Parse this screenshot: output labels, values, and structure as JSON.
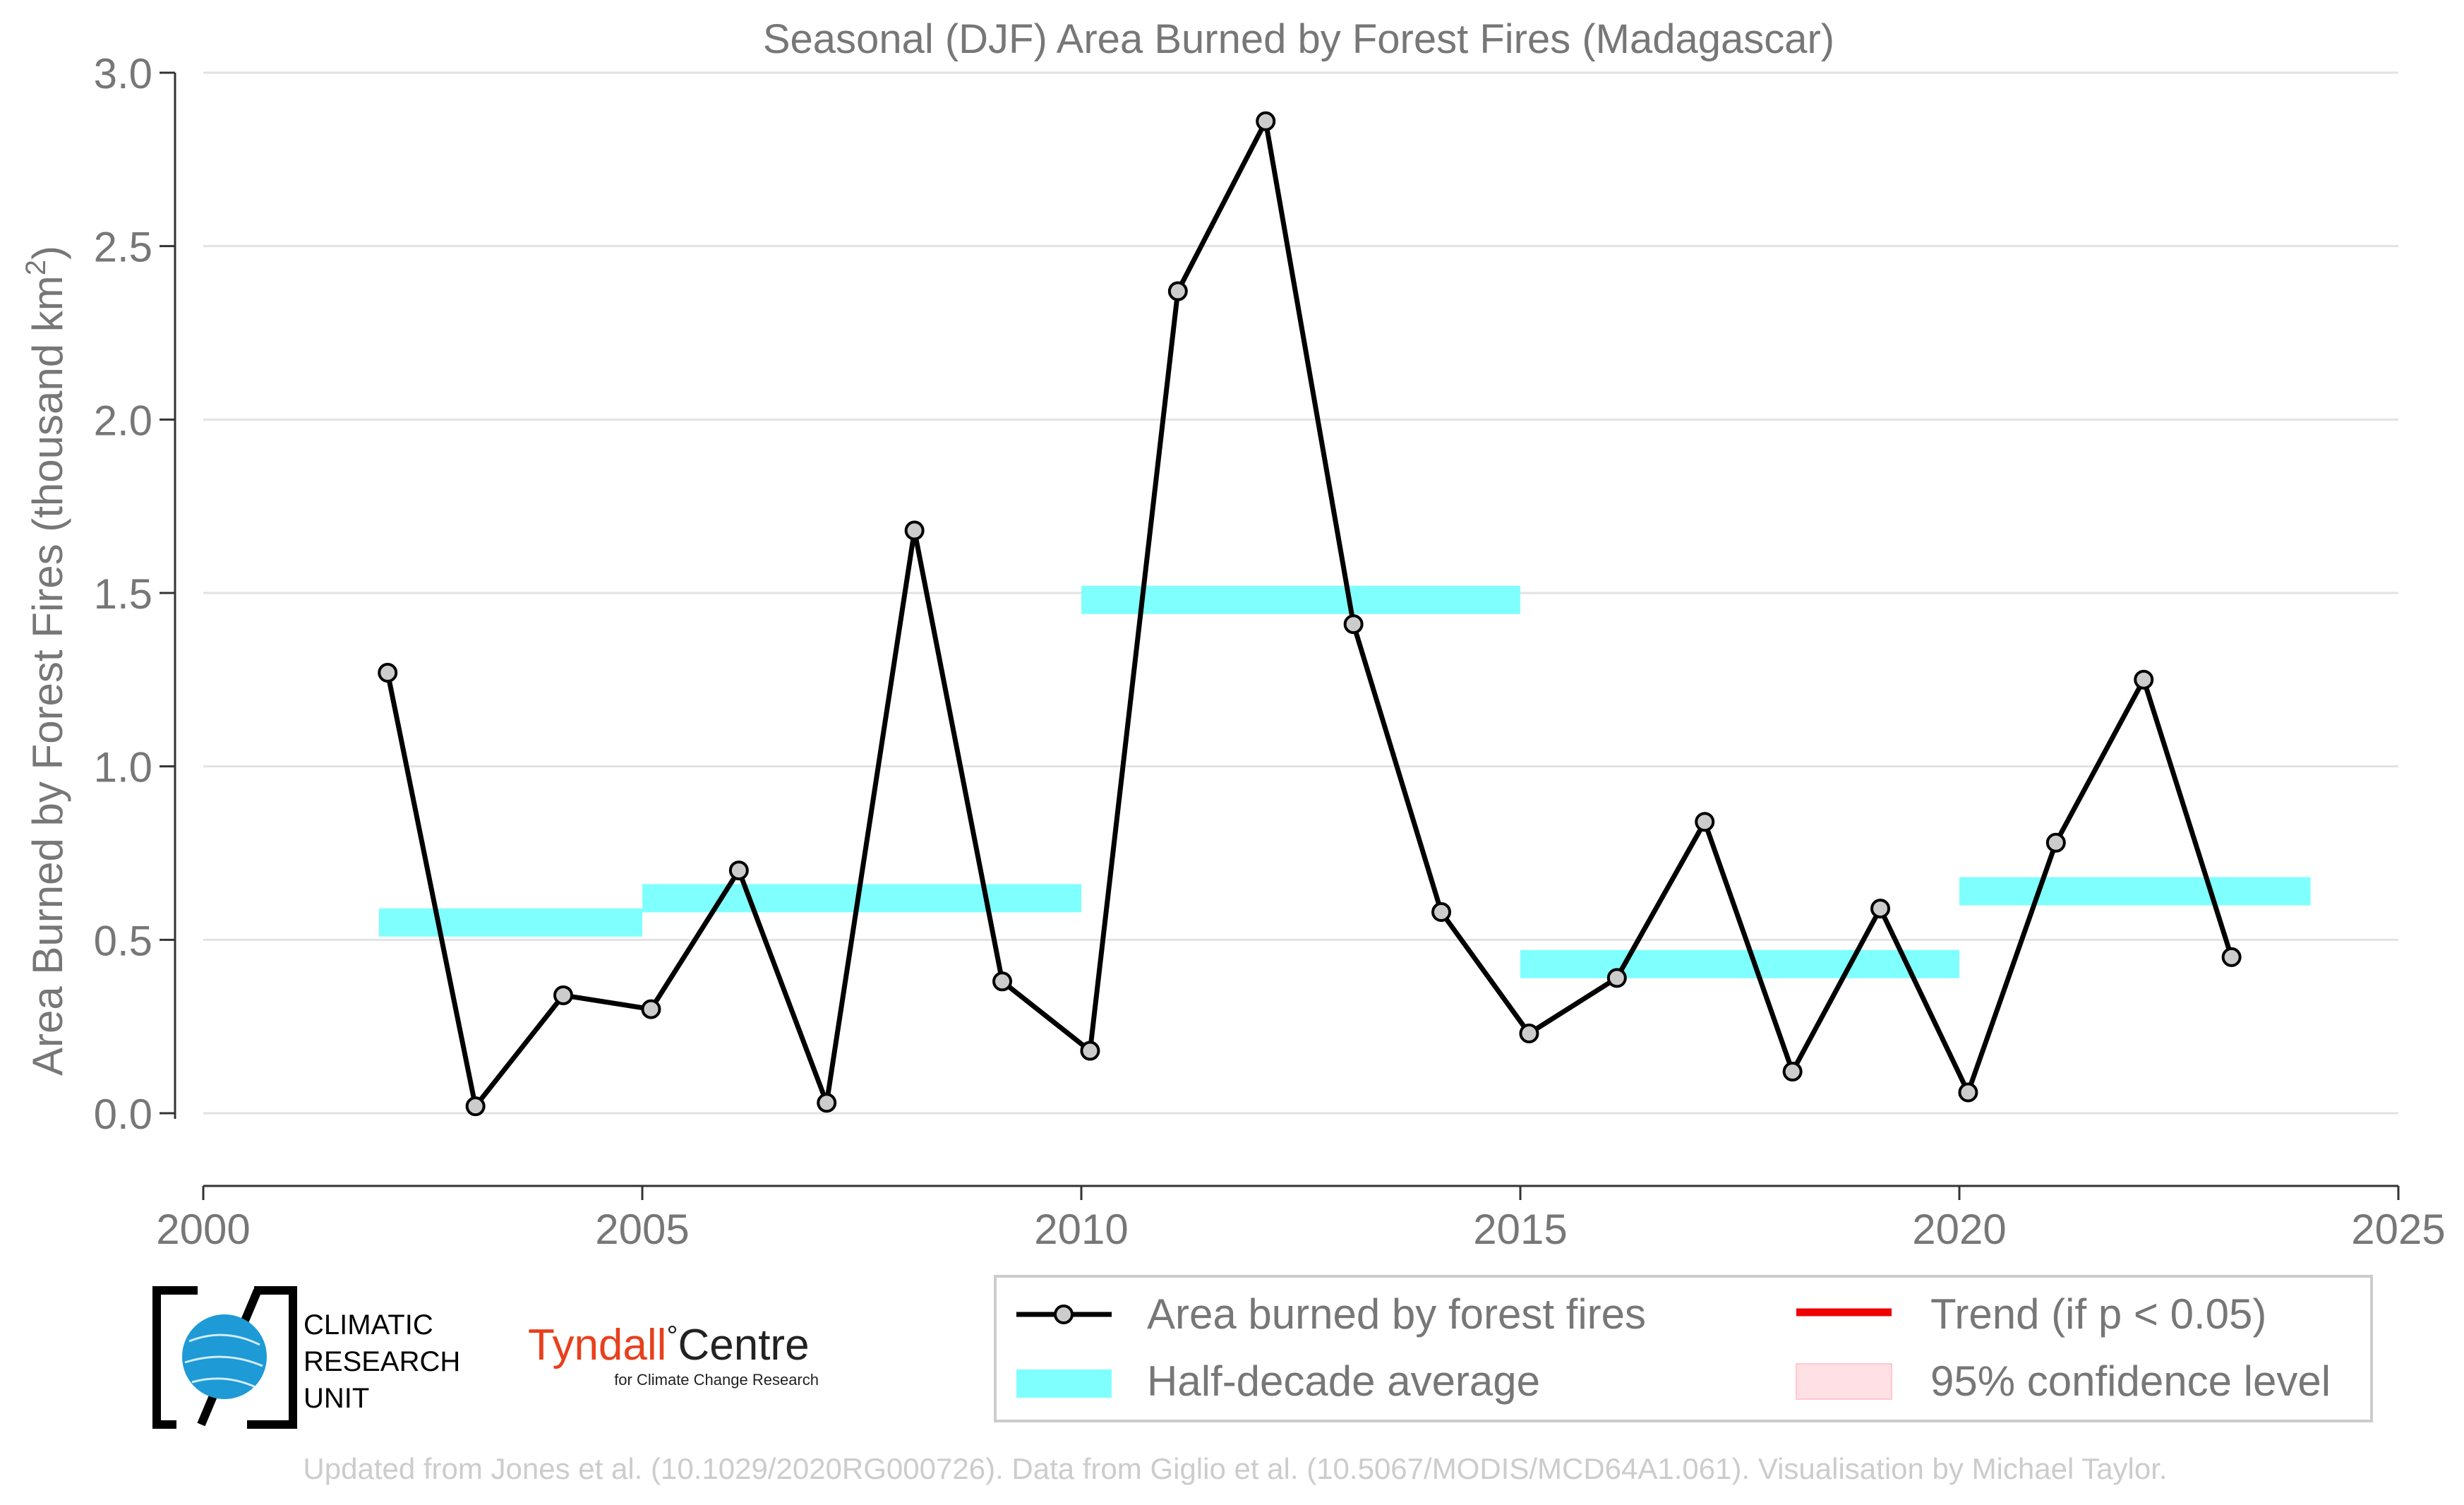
{
  "chart_data": {
    "type": "line",
    "title": "Seasonal (DJF) Area Burned by Forest Fires (Madagascar)",
    "ylabel_main": "Area Burned by Forest Fires (thousand km",
    "ylabel_sup": "2",
    "ylabel_close": ")",
    "xlabel": "",
    "xlim": [
      2000,
      2025
    ],
    "ylim": [
      -0.05,
      3.0
    ],
    "x_ticks": [
      2000,
      2005,
      2010,
      2015,
      2020,
      2025
    ],
    "x_tick_labels": [
      "2000",
      "2005",
      "2010",
      "2015",
      "2020",
      "2025"
    ],
    "y_ticks": [
      0.0,
      0.5,
      1.0,
      1.5,
      2.0,
      2.5,
      3.0
    ],
    "y_tick_labels": [
      "0.0",
      "0.5",
      "1.0",
      "1.5",
      "2.0",
      "2.5",
      "3.0"
    ],
    "grid": "horizontal",
    "legend_position": "bottom-right",
    "series": [
      {
        "name": "Area burned by forest fires",
        "color": "#000000",
        "marker_fill": "#cccccc",
        "points": [
          {
            "x": 2002.1,
            "y": 1.27
          },
          {
            "x": 2003.1,
            "y": 0.02
          },
          {
            "x": 2004.1,
            "y": 0.34
          },
          {
            "x": 2005.1,
            "y": 0.3
          },
          {
            "x": 2006.1,
            "y": 0.7
          },
          {
            "x": 2007.1,
            "y": 0.03
          },
          {
            "x": 2008.1,
            "y": 1.68
          },
          {
            "x": 2009.1,
            "y": 0.38
          },
          {
            "x": 2010.1,
            "y": 0.18
          },
          {
            "x": 2011.1,
            "y": 2.37
          },
          {
            "x": 2012.1,
            "y": 2.86
          },
          {
            "x": 2013.1,
            "y": 1.41
          },
          {
            "x": 2014.1,
            "y": 0.58
          },
          {
            "x": 2015.1,
            "y": 0.23
          },
          {
            "x": 2016.1,
            "y": 0.39
          },
          {
            "x": 2017.1,
            "y": 0.84
          },
          {
            "x": 2018.1,
            "y": 0.12
          },
          {
            "x": 2019.1,
            "y": 0.59
          },
          {
            "x": 2020.1,
            "y": 0.06
          },
          {
            "x": 2021.1,
            "y": 0.78
          },
          {
            "x": 2022.1,
            "y": 1.25
          },
          {
            "x": 2023.1,
            "y": 0.45
          }
        ]
      },
      {
        "name": "Half-decade average",
        "color": "#80ffff",
        "segments": [
          {
            "x0": 2002,
            "x1": 2005,
            "y": 0.55
          },
          {
            "x0": 2005,
            "x1": 2010,
            "y": 0.62
          },
          {
            "x0": 2010,
            "x1": 2015,
            "y": 1.48
          },
          {
            "x0": 2015,
            "x1": 2020,
            "y": 0.43
          },
          {
            "x0": 2020,
            "x1": 2024,
            "y": 0.64
          }
        ]
      }
    ],
    "legend": [
      {
        "label": "Area burned by forest fires",
        "kind": "line-marker",
        "color": "#000000"
      },
      {
        "label": "Trend (if p < 0.05)",
        "kind": "line",
        "color": "#ee0000"
      },
      {
        "label": "Half-decade average",
        "kind": "band",
        "color": "#80ffff"
      },
      {
        "label": "95% confidence level",
        "kind": "band",
        "color": "#ffe0e4"
      }
    ]
  },
  "logos": {
    "cru_line1": "CLIMATIC",
    "cru_line2": "RESEARCH",
    "cru_line3": "UNIT",
    "tyndall_name": "Tyndall",
    "tyndall_degree": "°",
    "tyndall_centre": "Centre",
    "tyndall_sub": "for Climate Change Research"
  },
  "credit": "Updated from Jones et al. (10.1029/2020RG000726). Data from Giglio et al. (10.5067/MODIS/MCD64A1.061). Visualisation by Michael Taylor.",
  "colors": {
    "text_gray": "#777777",
    "credit_gray": "#cccccc",
    "grid": "#e2e2e2",
    "tyndall_red": "#e8401c",
    "cru_blue": "#1e9ad6"
  }
}
